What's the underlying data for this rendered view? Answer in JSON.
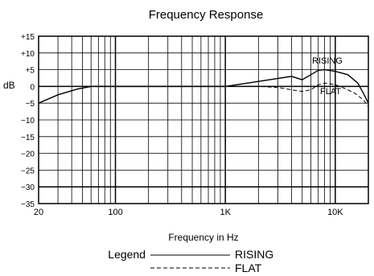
{
  "chart_data": {
    "type": "line",
    "title": "Frequency Response",
    "xlabel": "Frequency in Hz",
    "ylabel": "dB",
    "x_scale": "log",
    "xlim": [
      20,
      20000
    ],
    "ylim": [
      -35,
      15
    ],
    "grid": true,
    "x_ticks": [
      {
        "value": 20,
        "label": "20"
      },
      {
        "value": 100,
        "label": "100"
      },
      {
        "value": 1000,
        "label": "1K"
      },
      {
        "value": 10000,
        "label": "10K"
      }
    ],
    "y_ticks": [
      {
        "value": 15,
        "label": "+15"
      },
      {
        "value": 10,
        "label": "+10"
      },
      {
        "value": 5,
        "label": "+5"
      },
      {
        "value": 0,
        "label": "0"
      },
      {
        "value": -5,
        "label": "−5"
      },
      {
        "value": -10,
        "label": "−10"
      },
      {
        "value": -15,
        "label": "−15"
      },
      {
        "value": -20,
        "label": "−20"
      },
      {
        "value": -25,
        "label": "−25"
      },
      {
        "value": -30,
        "label": "−30"
      },
      {
        "value": -35,
        "label": "−35"
      }
    ],
    "series": [
      {
        "name": "RISING",
        "style": "solid",
        "x": [
          20,
          30,
          45,
          60,
          100,
          200,
          500,
          1000,
          2000,
          4000,
          5000,
          6000,
          7000,
          8000,
          10000,
          13000,
          16000,
          18000,
          20000
        ],
        "y": [
          -5,
          -2.5,
          -0.8,
          0,
          0,
          0,
          0,
          0,
          1.5,
          3,
          2,
          3.5,
          4.8,
          5,
          4.5,
          3.5,
          1,
          -2,
          -5
        ]
      },
      {
        "name": "FLAT",
        "style": "dashed",
        "x": [
          20,
          30,
          45,
          60,
          100,
          200,
          500,
          1000,
          2000,
          3000,
          4000,
          5000,
          6000,
          7000,
          8000,
          10000,
          12000,
          15000,
          18000,
          20000
        ],
        "y": [
          -5,
          -2.5,
          -0.8,
          0,
          0,
          0,
          0,
          0,
          0,
          -0.3,
          -1,
          -1.5,
          -1,
          0.5,
          1,
          0.5,
          -0.5,
          -2,
          -4,
          -6
        ]
      }
    ],
    "annotations": [
      "RISING",
      "FLAT"
    ],
    "legend": {
      "title": "Legend",
      "placement": "bottom",
      "entries": [
        {
          "label": "RISING",
          "style": "solid"
        },
        {
          "label": "FLAT",
          "style": "dashed"
        }
      ]
    }
  }
}
